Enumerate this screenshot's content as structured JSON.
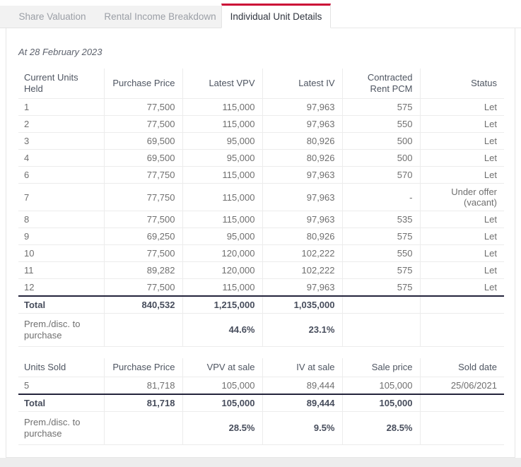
{
  "colors": {
    "accent_red": "#cb0935",
    "total_rule_dark": "#23233b",
    "tab_bar_gray": "#f2f2f2"
  },
  "tab_bar": {
    "tabs": [
      {
        "label": "Share Valuation",
        "active": false
      },
      {
        "label": "Rental Income Breakdown",
        "active": false
      },
      {
        "label": "Individual Unit Details",
        "active": true
      }
    ]
  },
  "content": {
    "as_of_date": "At 28 February 2023",
    "tables": {
      "units_held": {
        "columns": [
          "Current Units Held",
          "Purchase Price",
          "Latest VPV",
          "Latest IV",
          "Contracted Rent PCM",
          "Status"
        ],
        "rows": [
          [
            "1",
            "77,500",
            "115,000",
            "97,963",
            "575",
            "Let"
          ],
          [
            "2",
            "77,500",
            "115,000",
            "97,963",
            "550",
            "Let"
          ],
          [
            "3",
            "69,500",
            "95,000",
            "80,926",
            "500",
            "Let"
          ],
          [
            "4",
            "69,500",
            "95,000",
            "80,926",
            "500",
            "Let"
          ],
          [
            "6",
            "77,750",
            "115,000",
            "97,963",
            "570",
            "Let"
          ],
          [
            "7",
            "77,750",
            "115,000",
            "97,963",
            "-",
            "Under offer (vacant)"
          ],
          [
            "8",
            "77,500",
            "115,000",
            "97,963",
            "535",
            "Let"
          ],
          [
            "9",
            "69,250",
            "95,000",
            "80,926",
            "575",
            "Let"
          ],
          [
            "10",
            "77,500",
            "120,000",
            "102,222",
            "550",
            "Let"
          ],
          [
            "11",
            "89,282",
            "120,000",
            "102,222",
            "575",
            "Let"
          ],
          [
            "12",
            "77,500",
            "115,000",
            "97,963",
            "575",
            "Let"
          ]
        ],
        "total_row": [
          "Total",
          "840,532",
          "1,215,000",
          "1,035,000",
          "",
          ""
        ],
        "premium_row": [
          "Prem./disc. to purchase",
          "",
          "44.6%",
          "23.1%",
          "",
          ""
        ]
      },
      "units_sold": {
        "columns": [
          "Units Sold",
          "Purchase Price",
          "VPV at sale",
          "IV at sale",
          "Sale price",
          "Sold date"
        ],
        "rows": [
          [
            "5",
            "81,718",
            "105,000",
            "89,444",
            "105,000",
            "25/06/2021"
          ]
        ],
        "total_row": [
          "Total",
          "81,718",
          "105,000",
          "89,444",
          "105,000",
          ""
        ],
        "premium_row": [
          "Prem./disc. to purchase",
          "",
          "28.5%",
          "9.5%",
          "28.5%",
          ""
        ]
      }
    }
  }
}
